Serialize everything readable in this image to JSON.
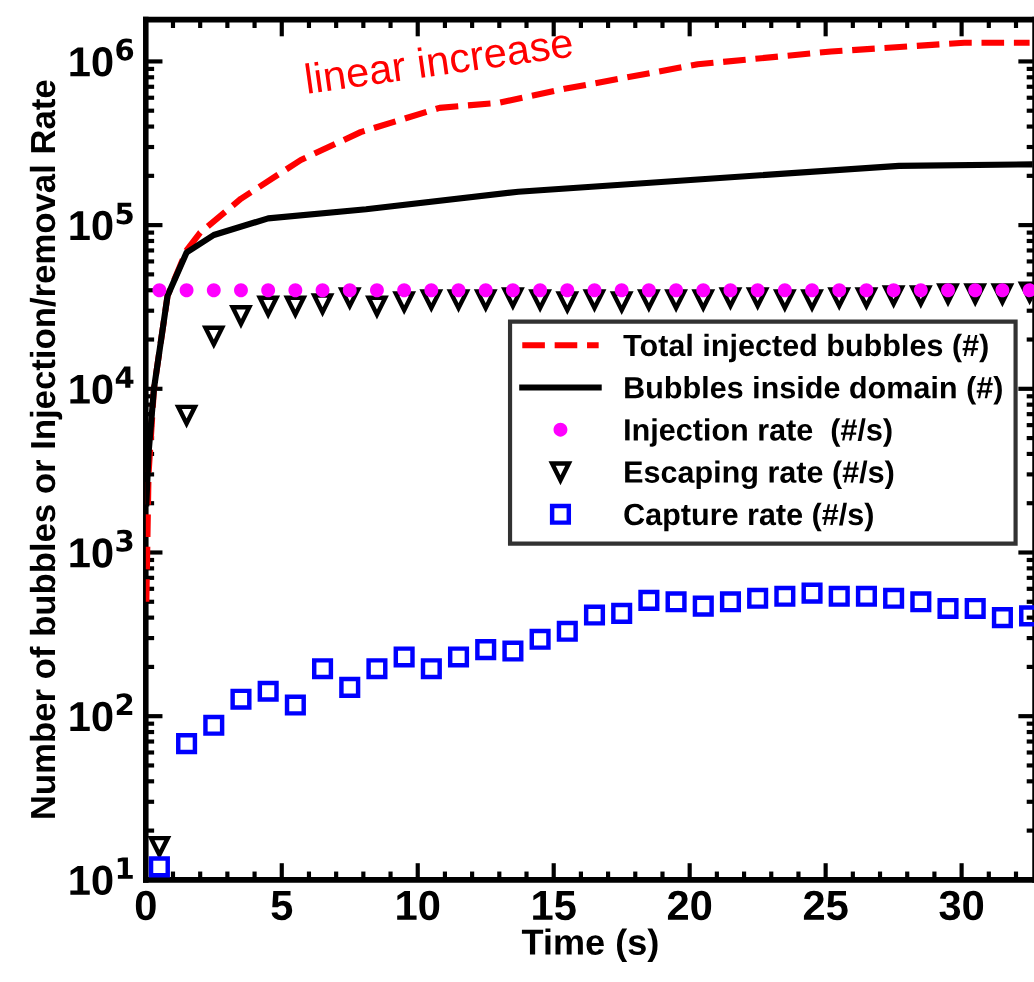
{
  "chart_data": {
    "type": "line",
    "xlabel": "Time (s)",
    "ylabel": "Number of bubbles or Injection/removal Rate",
    "xlim": [
      0,
      32.7
    ],
    "xticks": [
      0,
      5,
      10,
      15,
      20,
      25,
      30
    ],
    "ylim": [
      10,
      1800000
    ],
    "yticks": [
      {
        "value": 10,
        "label": "10$^{1}$"
      },
      {
        "value": 100,
        "label": "10$^{2}$"
      },
      {
        "value": 1000,
        "label": "10$^{3}$"
      },
      {
        "value": 10000,
        "label": "10$^{4}$"
      },
      {
        "value": 100000,
        "label": "10$^{5}$"
      },
      {
        "value": 1000000,
        "label": "10$^{6}$"
      }
    ],
    "log": "y",
    "grid": false,
    "legend": "center right",
    "annotations": [
      "linear increase"
    ],
    "series": [
      {
        "name": "Total injected bubbles (#)",
        "line_style": "dashed",
        "marker": "none",
        "color": "#ff0000",
        "x": [
          0.02,
          0.1,
          0.3,
          0.8,
          1.5,
          2.0,
          3.5,
          5.7,
          7.9,
          10.8,
          13.0,
          15.4,
          20.3,
          25.2,
          30.1,
          32.5
        ],
        "values": [
          500,
          3000,
          10000,
          37000,
          70000,
          90000,
          145000,
          250000,
          370000,
          520000,
          560000,
          680000,
          960000,
          1150000,
          1300000,
          1300000
        ]
      },
      {
        "name": "Bubbles inside domain (#)",
        "line_style": "solid",
        "marker": "none",
        "color": "#000000",
        "x": [
          0.02,
          0.1,
          0.3,
          0.8,
          1.5,
          2.5,
          4.5,
          8.1,
          13.7,
          20.3,
          27.7,
          32.5
        ],
        "values": [
          2000,
          4000,
          10000,
          37000,
          68000,
          87000,
          110000,
          125000,
          160000,
          190000,
          230000,
          235000
        ]
      },
      {
        "name": "Injection rate  (#/s)",
        "type": "scatter",
        "marker": "circle",
        "color": "#ff00ff",
        "x": [
          0.5,
          1.5,
          2.5,
          3.5,
          4.5,
          5.5,
          6.5,
          7.5,
          8.5,
          9.5,
          10.5,
          11.5,
          12.5,
          13.5,
          14.5,
          15.5,
          16.5,
          17.5,
          18.5,
          19.5,
          20.5,
          21.5,
          22.5,
          23.5,
          24.5,
          25.5,
          26.5,
          27.5,
          28.5,
          29.5,
          30.5,
          31.5,
          32.5
        ],
        "values": [
          40000,
          40000,
          40000,
          40000,
          40000,
          40000,
          40000,
          40000,
          40000,
          40000,
          40000,
          40000,
          40000,
          40000,
          40000,
          40000,
          40000,
          40000,
          40000,
          40000,
          40000,
          40000,
          40000,
          40000,
          40000,
          40000,
          40000,
          40000,
          40000,
          40000,
          40000,
          40000,
          40000
        ]
      },
      {
        "name": "Escaping rate (#/s)",
        "type": "scatter",
        "marker": "triangle",
        "color": "#000000",
        "x": [
          0.5,
          1.5,
          2.5,
          3.5,
          4.5,
          5.5,
          6.5,
          7.5,
          8.5,
          9.5,
          10.5,
          11.5,
          12.5,
          13.5,
          14.5,
          15.5,
          16.5,
          17.5,
          18.5,
          19.5,
          20.5,
          21.5,
          22.5,
          23.5,
          24.5,
          25.5,
          26.5,
          27.5,
          28.5,
          29.5,
          30.5,
          31.5,
          32.5
        ],
        "values": [
          16,
          6900,
          21000,
          28000,
          32000,
          32000,
          33000,
          36000,
          32000,
          34000,
          35000,
          35000,
          35000,
          36000,
          35000,
          34000,
          35000,
          34000,
          35000,
          35000,
          35000,
          36000,
          36000,
          35000,
          35000,
          36000,
          36000,
          37000,
          37000,
          38000,
          38000,
          38000,
          39000
        ]
      },
      {
        "name": "Capture rate (#/s)",
        "type": "scatter",
        "marker": "square",
        "color": "#0000ff",
        "x": [
          0.5,
          1.5,
          2.5,
          3.5,
          4.5,
          5.5,
          6.5,
          7.5,
          8.5,
          9.5,
          10.5,
          11.5,
          12.5,
          13.5,
          14.5,
          15.5,
          16.5,
          17.5,
          18.5,
          19.5,
          20.5,
          21.5,
          22.5,
          23.5,
          24.5,
          25.5,
          26.5,
          27.5,
          28.5,
          29.5,
          30.5,
          31.5,
          32.5
        ],
        "values": [
          12,
          68,
          88,
          127,
          142,
          117,
          195,
          150,
          195,
          230,
          195,
          230,
          255,
          250,
          295,
          330,
          415,
          425,
          510,
          500,
          470,
          500,
          525,
          540,
          565,
          540,
          540,
          525,
          500,
          455,
          455,
          400,
          410
        ]
      }
    ]
  }
}
